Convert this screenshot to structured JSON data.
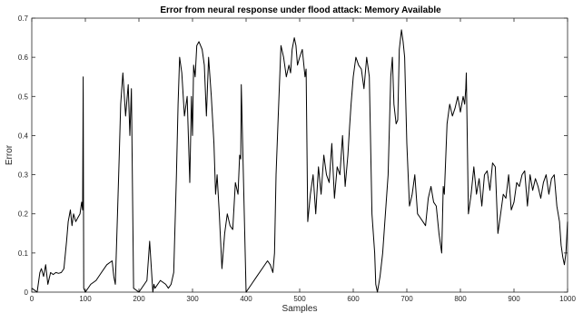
{
  "chart_data": {
    "type": "line",
    "title": "Error from neural response under flood attack: Memory Available",
    "xlabel": "Samples",
    "ylabel": "Error",
    "xlim": [
      0,
      1000
    ],
    "ylim": [
      0,
      0.7
    ],
    "xticks": [
      0,
      100,
      200,
      300,
      400,
      500,
      600,
      700,
      800,
      900,
      1000
    ],
    "yticks": [
      0,
      0.1,
      0.2,
      0.3,
      0.4,
      0.5,
      0.6,
      0.7
    ],
    "xtick_labels": [
      "0",
      "100",
      "200",
      "300",
      "400",
      "500",
      "600",
      "700",
      "800",
      "900",
      "1000"
    ],
    "ytick_labels": [
      "0",
      "0.1",
      "0.2",
      "0.3",
      "0.4",
      "0.5",
      "0.6",
      "0.7"
    ],
    "grid": false,
    "line_color": "#000000",
    "series": [
      {
        "x": [
          0,
          5,
          10,
          15,
          18,
          22,
          26,
          30,
          35,
          40,
          45,
          50,
          55,
          60,
          65,
          68,
          72,
          75,
          78,
          82,
          86,
          90,
          93,
          95,
          96,
          97,
          100,
          110,
          120,
          130,
          140,
          150,
          153,
          156,
          160,
          163,
          166,
          170,
          175,
          180,
          183,
          186,
          190,
          200,
          210,
          215,
          220,
          226,
          228,
          230,
          240,
          250,
          255,
          260,
          265,
          270,
          273,
          276,
          280,
          285,
          290,
          295,
          298,
          300,
          302,
          305,
          308,
          312,
          318,
          322,
          326,
          330,
          335,
          340,
          343,
          346,
          350,
          355,
          360,
          365,
          370,
          375,
          380,
          385,
          388,
          390,
          391,
          400,
          410,
          420,
          430,
          440,
          445,
          450,
          453,
          456,
          460,
          465,
          470,
          475,
          480,
          483,
          486,
          490,
          493,
          496,
          500,
          505,
          510,
          512,
          515,
          520,
          525,
          530,
          535,
          540,
          545,
          550,
          555,
          560,
          565,
          570,
          575,
          580,
          585,
          590,
          593,
          596,
          600,
          605,
          610,
          615,
          620,
          625,
          630,
          635,
          640,
          642,
          645,
          650,
          655,
          660,
          665,
          670,
          673,
          676,
          680,
          683,
          686,
          690,
          693,
          696,
          700,
          705,
          710,
          715,
          720,
          725,
          730,
          735,
          740,
          745,
          750,
          755,
          760,
          765,
          768,
          770,
          775,
          780,
          785,
          790,
          795,
          800,
          805,
          808,
          810,
          811,
          815,
          820,
          825,
          830,
          835,
          840,
          845,
          850,
          855,
          860,
          865,
          870,
          875,
          880,
          885,
          890,
          895,
          900,
          905,
          910,
          915,
          920,
          925,
          930,
          935,
          940,
          945,
          950,
          955,
          960,
          965,
          970,
          975,
          980,
          985,
          988,
          991,
          994,
          997,
          1000
        ],
        "y": [
          0.01,
          0.005,
          0.0,
          0.05,
          0.06,
          0.04,
          0.07,
          0.02,
          0.05,
          0.045,
          0.05,
          0.048,
          0.05,
          0.06,
          0.13,
          0.18,
          0.21,
          0.17,
          0.2,
          0.18,
          0.19,
          0.2,
          0.23,
          0.21,
          0.55,
          0.01,
          0.0,
          0.02,
          0.03,
          0.05,
          0.07,
          0.08,
          0.04,
          0.02,
          0.2,
          0.34,
          0.48,
          0.56,
          0.45,
          0.53,
          0.4,
          0.52,
          0.01,
          0.0,
          0.02,
          0.03,
          0.13,
          0.0,
          0.02,
          0.01,
          0.03,
          0.02,
          0.01,
          0.02,
          0.05,
          0.3,
          0.48,
          0.6,
          0.56,
          0.45,
          0.5,
          0.28,
          0.5,
          0.4,
          0.58,
          0.55,
          0.63,
          0.64,
          0.62,
          0.58,
          0.45,
          0.6,
          0.5,
          0.38,
          0.25,
          0.3,
          0.2,
          0.06,
          0.15,
          0.2,
          0.17,
          0.16,
          0.28,
          0.25,
          0.35,
          0.34,
          0.53,
          0.0,
          0.02,
          0.04,
          0.06,
          0.08,
          0.07,
          0.05,
          0.1,
          0.3,
          0.45,
          0.63,
          0.6,
          0.55,
          0.58,
          0.56,
          0.62,
          0.65,
          0.63,
          0.58,
          0.6,
          0.62,
          0.55,
          0.57,
          0.18,
          0.25,
          0.3,
          0.2,
          0.32,
          0.25,
          0.35,
          0.3,
          0.28,
          0.38,
          0.24,
          0.32,
          0.3,
          0.4,
          0.27,
          0.35,
          0.42,
          0.48,
          0.55,
          0.6,
          0.58,
          0.57,
          0.52,
          0.6,
          0.55,
          0.2,
          0.1,
          0.02,
          0.0,
          0.04,
          0.1,
          0.2,
          0.3,
          0.55,
          0.6,
          0.48,
          0.43,
          0.44,
          0.62,
          0.67,
          0.64,
          0.6,
          0.38,
          0.22,
          0.25,
          0.3,
          0.2,
          0.19,
          0.18,
          0.17,
          0.24,
          0.27,
          0.23,
          0.22,
          0.15,
          0.1,
          0.27,
          0.25,
          0.43,
          0.48,
          0.45,
          0.47,
          0.5,
          0.46,
          0.5,
          0.48,
          0.52,
          0.56,
          0.2,
          0.25,
          0.32,
          0.25,
          0.29,
          0.22,
          0.3,
          0.31,
          0.26,
          0.33,
          0.32,
          0.15,
          0.2,
          0.25,
          0.24,
          0.3,
          0.21,
          0.23,
          0.28,
          0.27,
          0.3,
          0.31,
          0.22,
          0.3,
          0.26,
          0.29,
          0.27,
          0.24,
          0.28,
          0.3,
          0.25,
          0.29,
          0.3,
          0.22,
          0.18,
          0.12,
          0.09,
          0.07,
          0.1,
          0.18
        ]
      }
    ]
  }
}
